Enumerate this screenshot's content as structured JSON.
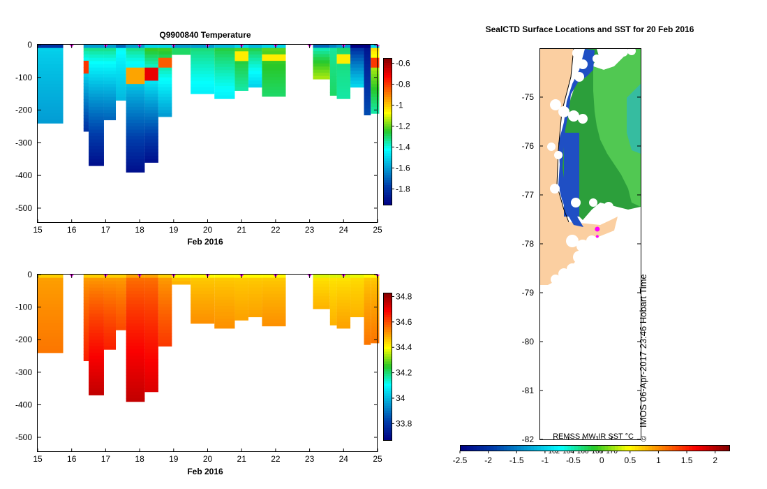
{
  "chart_data": [
    {
      "type": "heatmap",
      "title": "Q9900840  Temperature",
      "xlabel": "Feb 2016",
      "xticks": [
        "15",
        "16",
        "17",
        "18",
        "19",
        "20",
        "21",
        "22",
        "23",
        "24",
        "25"
      ],
      "xlim": [
        15,
        25
      ],
      "yticks": [
        "0",
        "-100",
        "-200",
        "-300",
        "-400",
        "-500"
      ],
      "ylim": [
        -545,
        0
      ],
      "colorbar": {
        "ticks": [
          "-0.6",
          "-0.8",
          "-1",
          "-1.2",
          "-1.4",
          "-1.6",
          "-1.8"
        ],
        "range": [
          -1.95,
          -0.55
        ]
      },
      "profiles": [
        {
          "x0": 15.0,
          "x1": 15.75,
          "depth": 240,
          "shallow": -1.5,
          "deep": -1.6,
          "accent": null
        },
        {
          "x0": 16.35,
          "x1": 16.5,
          "depth": 265,
          "shallow": -1.3,
          "deep": -1.8,
          "accent": -0.8
        },
        {
          "x0": 16.5,
          "x1": 16.95,
          "depth": 370,
          "shallow": -1.3,
          "deep": -1.9,
          "accent": null
        },
        {
          "x0": 16.95,
          "x1": 17.3,
          "depth": 230,
          "shallow": -1.3,
          "deep": -1.7,
          "accent": null
        },
        {
          "x0": 17.3,
          "x1": 17.6,
          "depth": 170,
          "shallow": -1.4,
          "deep": -1.55,
          "accent": null
        },
        {
          "x0": 17.6,
          "x1": 18.15,
          "depth": 390,
          "shallow": -1.3,
          "deep": -1.9,
          "accent": -0.95
        },
        {
          "x0": 18.15,
          "x1": 18.55,
          "depth": 360,
          "shallow": -1.2,
          "deep": -1.9,
          "accent": -0.7
        },
        {
          "x0": 18.55,
          "x1": 18.95,
          "depth": 220,
          "shallow": -1.2,
          "deep": -1.6,
          "accent": -0.85
        },
        {
          "x0": 18.95,
          "x1": 19.5,
          "depth": 30,
          "shallow": -1.3,
          "deep": -1.3,
          "accent": null
        },
        {
          "x0": 19.5,
          "x1": 20.2,
          "depth": 150,
          "shallow": -1.3,
          "deep": -1.45,
          "accent": null
        },
        {
          "x0": 20.2,
          "x1": 20.8,
          "depth": 165,
          "shallow": -1.25,
          "deep": -1.45,
          "accent": null
        },
        {
          "x0": 20.8,
          "x1": 21.2,
          "depth": 140,
          "shallow": -1.2,
          "deep": -1.35,
          "accent": -1.05
        },
        {
          "x0": 21.2,
          "x1": 21.6,
          "depth": 130,
          "shallow": -1.25,
          "deep": -1.5,
          "accent": null
        },
        {
          "x0": 21.6,
          "x1": 22.3,
          "depth": 158,
          "shallow": -1.2,
          "deep": -1.3,
          "accent": -1.05
        },
        {
          "x0": 23.1,
          "x1": 23.6,
          "depth": 105,
          "shallow": -1.4,
          "deep": -1.15,
          "accent": null
        },
        {
          "x0": 23.6,
          "x1": 23.8,
          "depth": 155,
          "shallow": -1.35,
          "deep": -1.3,
          "accent": null
        },
        {
          "x0": 23.8,
          "x1": 24.2,
          "depth": 165,
          "shallow": -1.3,
          "deep": -1.35,
          "accent": -1.05
        },
        {
          "x0": 24.2,
          "x1": 24.6,
          "depth": 130,
          "shallow": -1.85,
          "deep": -1.5,
          "accent": null
        },
        {
          "x0": 24.6,
          "x1": 24.8,
          "depth": 215,
          "shallow": -1.9,
          "deep": -1.75,
          "accent": null
        },
        {
          "x0": 24.8,
          "x1": 25.05,
          "depth": 210,
          "shallow": -1.0,
          "deep": -1.35,
          "accent": -0.8
        }
      ],
      "markers": [
        16.0,
        17.0,
        18.0,
        19.0,
        20.0,
        21.0,
        22.0,
        23.0,
        24.0,
        25.0
      ]
    },
    {
      "type": "heatmap",
      "title": "",
      "xlabel": "Feb 2016",
      "xticks": [
        "15",
        "16",
        "17",
        "18",
        "19",
        "20",
        "21",
        "22",
        "23",
        "24",
        "25"
      ],
      "xlim": [
        15,
        25
      ],
      "yticks": [
        "0",
        "-100",
        "-200",
        "-300",
        "-400",
        "-500"
      ],
      "ylim": [
        -545,
        0
      ],
      "colorbar": {
        "ticks": [
          "34.8",
          "34.6",
          "34.4",
          "34.2",
          "34",
          "33.8"
        ],
        "range": [
          33.67,
          34.83
        ]
      },
      "profiles": [
        {
          "x0": 15.0,
          "x1": 15.75,
          "depth": 240,
          "shallow": 34.5,
          "deep": 34.55
        },
        {
          "x0": 16.35,
          "x1": 16.5,
          "depth": 265,
          "shallow": 34.5,
          "deep": 34.65
        },
        {
          "x0": 16.5,
          "x1": 16.95,
          "depth": 370,
          "shallow": 34.5,
          "deep": 34.75
        },
        {
          "x0": 16.95,
          "x1": 17.3,
          "depth": 230,
          "shallow": 34.5,
          "deep": 34.65
        },
        {
          "x0": 17.3,
          "x1": 17.6,
          "depth": 170,
          "shallow": 34.5,
          "deep": 34.6
        },
        {
          "x0": 17.6,
          "x1": 18.15,
          "depth": 390,
          "shallow": 34.55,
          "deep": 34.75
        },
        {
          "x0": 18.15,
          "x1": 18.55,
          "depth": 360,
          "shallow": 34.55,
          "deep": 34.72
        },
        {
          "x0": 18.55,
          "x1": 18.95,
          "depth": 220,
          "shallow": 34.5,
          "deep": 34.62
        },
        {
          "x0": 18.95,
          "x1": 19.5,
          "depth": 30,
          "shallow": 34.45,
          "deep": 34.48
        },
        {
          "x0": 19.5,
          "x1": 20.2,
          "depth": 150,
          "shallow": 34.45,
          "deep": 34.52
        },
        {
          "x0": 20.2,
          "x1": 20.8,
          "depth": 165,
          "shallow": 34.45,
          "deep": 34.52
        },
        {
          "x0": 20.8,
          "x1": 21.2,
          "depth": 140,
          "shallow": 34.45,
          "deep": 34.5
        },
        {
          "x0": 21.2,
          "x1": 21.6,
          "depth": 130,
          "shallow": 34.45,
          "deep": 34.5
        },
        {
          "x0": 21.6,
          "x1": 22.3,
          "depth": 158,
          "shallow": 34.45,
          "deep": 34.52
        },
        {
          "x0": 23.1,
          "x1": 23.6,
          "depth": 105,
          "shallow": 34.42,
          "deep": 34.48
        },
        {
          "x0": 23.6,
          "x1": 23.8,
          "depth": 155,
          "shallow": 34.42,
          "deep": 34.48
        },
        {
          "x0": 23.8,
          "x1": 24.2,
          "depth": 165,
          "shallow": 34.42,
          "deep": 34.5
        },
        {
          "x0": 24.2,
          "x1": 24.6,
          "depth": 130,
          "shallow": 34.43,
          "deep": 34.48
        },
        {
          "x0": 24.6,
          "x1": 24.8,
          "depth": 215,
          "shallow": 34.45,
          "deep": 34.55
        },
        {
          "x0": 24.8,
          "x1": 25.05,
          "depth": 210,
          "shallow": 34.45,
          "deep": 34.55
        }
      ],
      "markers": [
        16.0,
        17.0,
        18.0,
        19.0,
        20.0,
        21.0,
        22.0,
        23.0,
        24.0,
        25.0
      ]
    },
    {
      "type": "heatmap",
      "title": "SealCTD Surface Locations and SST for 20 Feb 2016",
      "yticks": [
        "-75",
        "-76",
        "-77",
        "-78",
        "-79",
        "-80",
        "-81",
        "-82"
      ],
      "ylim": [
        -82,
        -74
      ],
      "xticks": [
        "162",
        "164",
        "166",
        "168",
        "170"
      ],
      "xlim": [
        160,
        174
      ],
      "colorbar": {
        "label": "REMSS MW-IR SST °C",
        "ticks": [
          "-2.5",
          "-2",
          "-1.5",
          "-1",
          "-0.5",
          "0",
          "0.5",
          "1",
          "1.5",
          "2"
        ],
        "range": [
          -2.5,
          2.25
        ]
      },
      "surface_locations": [
        {
          "lon": 168.0,
          "lat": -77.7
        },
        {
          "lon": 168.0,
          "lat": -77.85
        }
      ],
      "credit": "IMOS 06-Apr-2017 23:46 Hobart Time",
      "copyright": "©"
    }
  ]
}
